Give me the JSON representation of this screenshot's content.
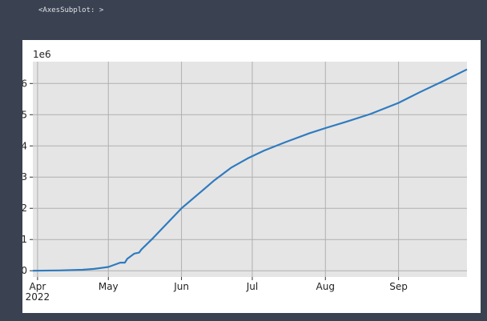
{
  "output_repr": "<AxesSubplot: >",
  "chart_data": {
    "type": "line",
    "title": "",
    "xlabel": "",
    "ylabel": "",
    "y_scale_label": "1e6",
    "grid": true,
    "legend": "none",
    "colors": {
      "line": "#2f7bbf",
      "axes_bg": "#e5e5e5",
      "grid": "#b0b0b0"
    },
    "xlim": [
      "2022-03-30",
      "2022-09-30"
    ],
    "ylim": [
      -0.2,
      6.7
    ],
    "xticks": [
      {
        "date": "2022-04-01",
        "label": "Apr",
        "sublabel": "2022"
      },
      {
        "date": "2022-05-01",
        "label": "May"
      },
      {
        "date": "2022-06-01",
        "label": "Jun"
      },
      {
        "date": "2022-07-01",
        "label": "Jul"
      },
      {
        "date": "2022-08-01",
        "label": "Aug"
      },
      {
        "date": "2022-09-01",
        "label": "Sep"
      }
    ],
    "yticks": [
      0,
      1,
      2,
      3,
      4,
      5,
      6
    ],
    "series": [
      {
        "x": [
          "2022-03-30",
          "2022-04-10",
          "2022-04-20",
          "2022-04-25",
          "2022-05-01",
          "2022-05-06",
          "2022-05-08",
          "2022-05-09",
          "2022-05-12",
          "2022-05-14",
          "2022-05-15",
          "2022-05-20",
          "2022-05-25",
          "2022-06-01",
          "2022-06-08",
          "2022-06-15",
          "2022-06-22",
          "2022-06-29",
          "2022-07-06",
          "2022-07-15",
          "2022-07-25",
          "2022-08-01",
          "2022-08-10",
          "2022-08-20",
          "2022-09-01",
          "2022-09-10",
          "2022-09-20",
          "2022-09-30"
        ],
        "y": [
          0,
          0.01,
          0.03,
          0.06,
          0.12,
          0.26,
          0.26,
          0.38,
          0.55,
          0.58,
          0.68,
          1.05,
          1.45,
          2.0,
          2.45,
          2.9,
          3.3,
          3.6,
          3.85,
          4.12,
          4.4,
          4.57,
          4.78,
          5.02,
          5.38,
          5.72,
          6.08,
          6.45
        ]
      }
    ]
  }
}
